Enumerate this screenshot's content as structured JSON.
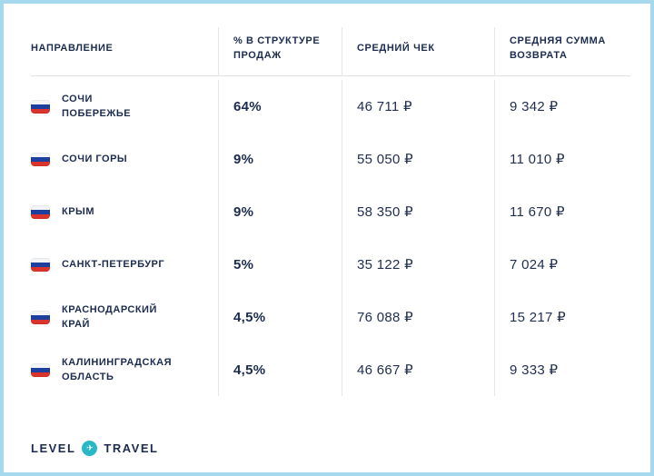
{
  "chart_data": {
    "type": "table",
    "columns": [
      "НАПРАВЛЕНИЕ",
      "% В СТРУКТУРЕ ПРОДАЖ",
      "СРЕДНИЙ ЧЕК",
      "СРЕДНЯЯ СУММА ВОЗВРАТА"
    ],
    "rows": [
      [
        "СОЧИ\nПОБЕРЕЖЬЕ",
        "64%",
        "46 711 ₽",
        "9 342 ₽"
      ],
      [
        "СОЧИ ГОРЫ",
        "9%",
        "55 050 ₽",
        "11 010 ₽"
      ],
      [
        "КРЫМ",
        "9%",
        "58 350 ₽",
        "11 670 ₽"
      ],
      [
        "САНКТ-ПЕТЕРБУРГ",
        "5%",
        "35 122 ₽",
        "7 024 ₽"
      ],
      [
        "КРАСНОДАРСКИЙ\nКРАЙ",
        "4,5%",
        "76 088 ₽",
        "15 217 ₽"
      ],
      [
        "КАЛИНИНГРАДСКАЯ\nОБЛАСТЬ",
        "4,5%",
        "46 667 ₽",
        "9 333 ₽"
      ]
    ],
    "row_flag_icon": "russia-flag",
    "title": "",
    "legend": "none",
    "grid": "column-dividers-and-header-underline"
  },
  "footer": {
    "logo_left": "LEVEL",
    "logo_right": "TRAVEL",
    "logo_plane": "✈"
  },
  "colors": {
    "frame_border": "#a6d9ee",
    "text_navy": "#1c2c4e",
    "divider": "#e3e6ea",
    "flag_blue": "#1d3f9e",
    "flag_red": "#d9332b",
    "logo_teal": "#2ab7c6"
  }
}
